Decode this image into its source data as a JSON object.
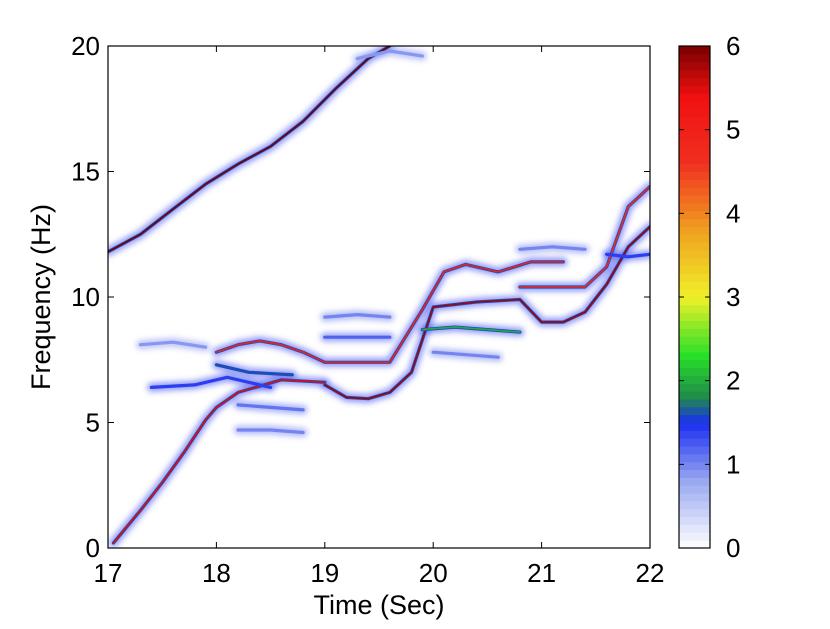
{
  "chart_data": {
    "type": "heatmap",
    "title": "",
    "xlabel": "Time (Sec)",
    "ylabel": "Frequency (Hz)",
    "xlim": [
      17,
      22
    ],
    "ylim": [
      0,
      20
    ],
    "xticks": [
      17,
      18,
      19,
      20,
      21,
      22
    ],
    "yticks": [
      0,
      5,
      10,
      15,
      20
    ],
    "grid": false,
    "colorbar": {
      "range": [
        0,
        6
      ],
      "ticks": [
        0,
        1,
        2,
        3,
        4,
        5,
        6
      ],
      "colormap": "white-blue-cyan-green-yellow-orange-red-darkred",
      "stops": [
        {
          "v": 0.0,
          "color": "#ffffff"
        },
        {
          "v": 0.8,
          "color": "#9aa8f0"
        },
        {
          "v": 1.5,
          "color": "#1a2ef0"
        },
        {
          "v": 1.8,
          "color": "#1f8a4a"
        },
        {
          "v": 2.3,
          "color": "#28e028"
        },
        {
          "v": 3.0,
          "color": "#f0f028"
        },
        {
          "v": 3.8,
          "color": "#f0a020"
        },
        {
          "v": 4.6,
          "color": "#f03020"
        },
        {
          "v": 5.4,
          "color": "#f01010"
        },
        {
          "v": 6.0,
          "color": "#780000"
        }
      ]
    },
    "ridges": [
      {
        "points": [
          [
            17.05,
            0.2
          ],
          [
            17.3,
            1.5
          ],
          [
            17.5,
            2.6
          ],
          [
            17.7,
            3.8
          ],
          [
            17.9,
            5.1
          ],
          [
            18.0,
            5.6
          ],
          [
            18.2,
            6.2
          ],
          [
            18.6,
            6.7
          ],
          [
            19.0,
            6.6
          ]
        ],
        "intensity": 5.5
      },
      {
        "points": [
          [
            17.0,
            11.8
          ],
          [
            17.3,
            12.5
          ],
          [
            17.6,
            13.5
          ],
          [
            17.9,
            14.5
          ],
          [
            18.2,
            15.3
          ],
          [
            18.5,
            16.0
          ],
          [
            18.8,
            17.0
          ],
          [
            19.1,
            18.3
          ],
          [
            19.4,
            19.5
          ],
          [
            19.6,
            20.0
          ]
        ],
        "intensity": 6.0
      },
      {
        "points": [
          [
            18.0,
            7.8
          ],
          [
            18.2,
            8.1
          ],
          [
            18.4,
            8.25
          ],
          [
            18.6,
            8.1
          ],
          [
            18.8,
            7.8
          ],
          [
            19.0,
            7.4
          ],
          [
            19.3,
            7.4
          ],
          [
            19.6,
            7.4
          ],
          [
            19.9,
            9.5
          ],
          [
            20.1,
            11.0
          ],
          [
            20.3,
            11.3
          ],
          [
            20.6,
            11.0
          ],
          [
            20.9,
            11.4
          ],
          [
            21.2,
            11.4
          ]
        ],
        "intensity": 5.0
      },
      {
        "points": [
          [
            19.0,
            6.5
          ],
          [
            19.2,
            6.0
          ],
          [
            19.4,
            5.95
          ],
          [
            19.6,
            6.2
          ],
          [
            19.8,
            7.0
          ],
          [
            20.0,
            9.6
          ],
          [
            20.4,
            9.8
          ],
          [
            20.8,
            9.9
          ],
          [
            21.0,
            9.0
          ],
          [
            21.2,
            9.0
          ],
          [
            21.4,
            9.4
          ],
          [
            21.6,
            10.5
          ],
          [
            21.8,
            12.0
          ],
          [
            22.0,
            12.8
          ]
        ],
        "intensity": 5.8
      },
      {
        "points": [
          [
            20.8,
            10.4
          ],
          [
            21.1,
            10.4
          ],
          [
            21.4,
            10.4
          ],
          [
            21.6,
            11.2
          ],
          [
            21.8,
            13.6
          ],
          [
            22.0,
            14.4
          ]
        ],
        "intensity": 4.8
      },
      {
        "points": [
          [
            19.9,
            8.7
          ],
          [
            20.2,
            8.8
          ],
          [
            20.5,
            8.7
          ],
          [
            20.8,
            8.6
          ]
        ],
        "intensity": 2.0
      },
      {
        "points": [
          [
            17.4,
            6.4
          ],
          [
            17.8,
            6.5
          ],
          [
            18.1,
            6.8
          ],
          [
            18.5,
            6.4
          ]
        ],
        "intensity": 1.4
      },
      {
        "points": [
          [
            18.0,
            7.3
          ],
          [
            18.3,
            7.0
          ],
          [
            18.7,
            6.9
          ]
        ],
        "intensity": 1.6
      },
      {
        "points": [
          [
            19.0,
            8.4
          ],
          [
            19.3,
            8.4
          ],
          [
            19.6,
            8.4
          ]
        ],
        "intensity": 1.2
      },
      {
        "points": [
          [
            19.0,
            9.2
          ],
          [
            19.3,
            9.3
          ],
          [
            19.6,
            9.2
          ]
        ],
        "intensity": 1.0
      },
      {
        "points": [
          [
            18.2,
            4.7
          ],
          [
            18.5,
            4.7
          ],
          [
            18.8,
            4.6
          ]
        ],
        "intensity": 1.0
      },
      {
        "points": [
          [
            18.2,
            5.7
          ],
          [
            18.5,
            5.6
          ],
          [
            18.8,
            5.5
          ]
        ],
        "intensity": 1.1
      },
      {
        "points": [
          [
            20.0,
            7.8
          ],
          [
            20.3,
            7.7
          ],
          [
            20.6,
            7.6
          ]
        ],
        "intensity": 1.0
      },
      {
        "points": [
          [
            20.8,
            11.9
          ],
          [
            21.1,
            12.0
          ],
          [
            21.4,
            11.9
          ]
        ],
        "intensity": 1.0
      },
      {
        "points": [
          [
            21.6,
            11.7
          ],
          [
            21.8,
            11.6
          ],
          [
            22.0,
            11.7
          ]
        ],
        "intensity": 1.4
      },
      {
        "points": [
          [
            17.3,
            8.1
          ],
          [
            17.6,
            8.2
          ],
          [
            17.9,
            8.0
          ]
        ],
        "intensity": 0.9
      },
      {
        "points": [
          [
            19.3,
            19.5
          ],
          [
            19.6,
            19.8
          ],
          [
            19.9,
            19.6
          ]
        ],
        "intensity": 0.9
      }
    ]
  }
}
